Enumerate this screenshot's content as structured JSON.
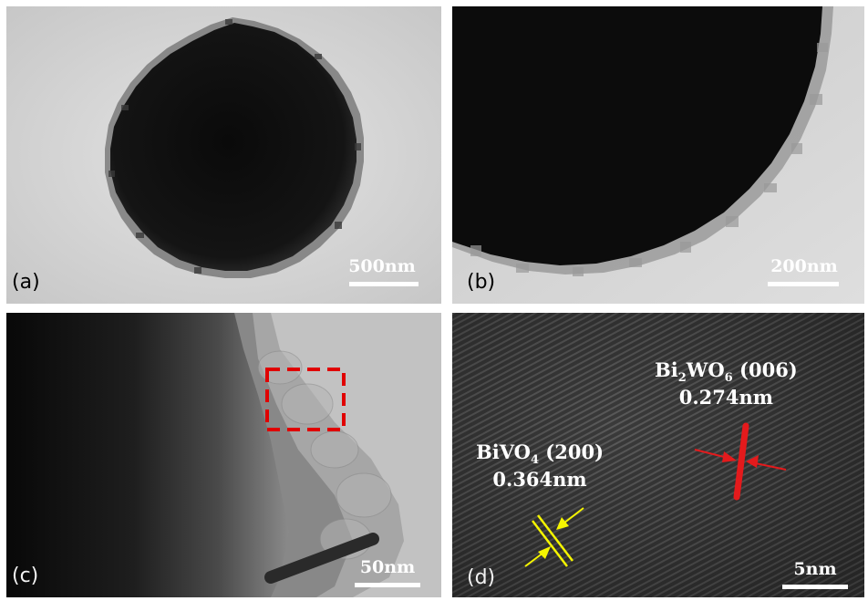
{
  "panels": {
    "a": {
      "label": "(a)",
      "scale_bar": "500nm"
    },
    "b": {
      "label": "(b)",
      "scale_bar": "200nm"
    },
    "c": {
      "label": "(c)",
      "scale_bar": "50nm"
    },
    "d": {
      "label": "(d)",
      "scale_bar": "5nm",
      "bi2wo6": {
        "base1": "Bi",
        "sub1": "2",
        "base2": "WO",
        "sub2": "6",
        "plane": " (006)",
        "spacing": "0.274nm"
      },
      "bivo4": {
        "base": "BiVO",
        "sub": "4",
        "plane": " (200)",
        "spacing": "0.364nm"
      }
    }
  },
  "colors": {
    "bi2wo6_marker": "#e41a1c",
    "bivo4_marker": "#f5f500",
    "selection_box": "#e00000"
  }
}
